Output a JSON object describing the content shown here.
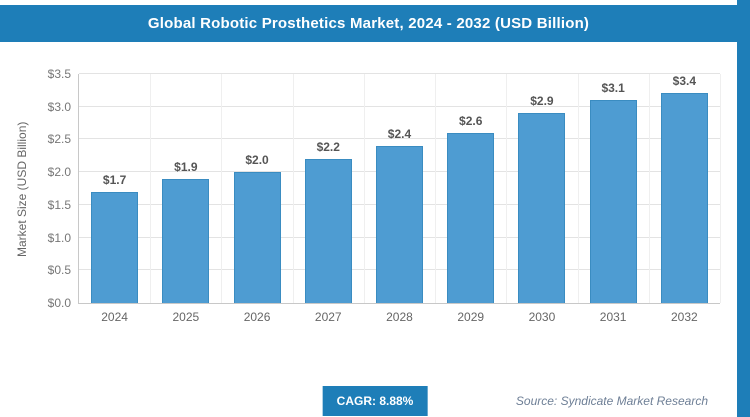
{
  "header": {
    "title": "Global Robotic Prosthetics Market, 2024 - 2032 (USD Billion)"
  },
  "chart_data": {
    "type": "bar",
    "title": "Global Robotic Prosthetics Market, 2024 - 2032 (USD Billion)",
    "ylabel": "Market Size (USD Billion)",
    "categories": [
      "2024",
      "2025",
      "2026",
      "2027",
      "2028",
      "2029",
      "2030",
      "2031",
      "2032"
    ],
    "values": [
      1.7,
      1.9,
      2.0,
      2.2,
      2.4,
      2.6,
      2.9,
      3.1,
      3.4
    ],
    "value_labels": [
      "$1.7",
      "$1.9",
      "$2.0",
      "$2.2",
      "$2.4",
      "$2.6",
      "$2.9",
      "$3.1",
      "$3.4"
    ],
    "ylim": [
      0,
      3.5
    ],
    "yticks": [
      "$0.0",
      "$0.5",
      "$1.0",
      "$1.5",
      "$2.0",
      "$2.5",
      "$3.0",
      "$3.5"
    ],
    "grid": true,
    "legend": "none"
  },
  "footer": {
    "cagr": "CAGR: 8.88%",
    "source": "Source: Syndicate Market Research"
  },
  "colors": {
    "accent": "#1E7EB8",
    "bar_fill": "#4E9CD2",
    "bar_border": "#3A8CC1",
    "grid": "#e3e3e3",
    "axis": "#c8c8c8",
    "tick_text": "#777777",
    "value_text": "#555555",
    "source_text": "#6E7F96"
  }
}
